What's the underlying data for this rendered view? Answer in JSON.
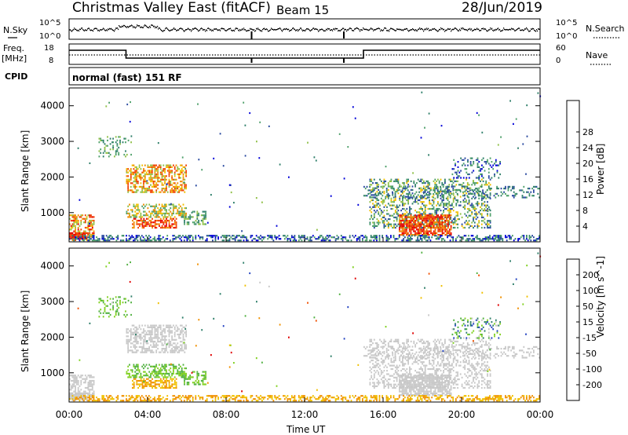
{
  "header": {
    "station": "Christmas Valley East (fitACF)",
    "beam": "Beam 15",
    "date": "28/Jun/2019"
  },
  "labels": {
    "nsky": "N.Sky",
    "nsearch": "N.Search",
    "freq_line1": "Freq.",
    "freq_line2": "[MHz]",
    "nave": "Nave",
    "cpid": "CPID",
    "cpid_value": "normal (fast) 151 RF",
    "noise_ticks": [
      "10^5",
      "10^0"
    ],
    "freq_ticks": [
      "18",
      "8"
    ],
    "nave_ticks": [
      "60",
      "0"
    ]
  },
  "chart_data": [
    {
      "type": "heatmap",
      "name": "power",
      "ylabel": "Slant Range [km]",
      "xlabel": "",
      "xlim": [
        0,
        24
      ],
      "ylim": [
        180,
        4500
      ],
      "yticks": [
        1000,
        2000,
        3000,
        4000
      ],
      "colorbar": {
        "label": "Power [dB]",
        "ticks": [
          "4",
          "8",
          "12",
          "16",
          "20",
          "24",
          "28"
        ],
        "colors": [
          "#0000d8",
          "#2a4aa0",
          "#2f7f6a",
          "#4ea06a",
          "#90c048",
          "#f0c000",
          "#f08c00",
          "#f04000",
          "#e80000"
        ]
      }
    },
    {
      "type": "heatmap",
      "name": "velocity",
      "ylabel": "Slant Range [km]",
      "xlabel": "Time UT",
      "xlim": [
        0,
        24
      ],
      "ylim": [
        180,
        4500
      ],
      "yticks": [
        1000,
        2000,
        3000,
        4000
      ],
      "xticks": [
        "00:00",
        "04:00",
        "08:00",
        "12:00",
        "16:00",
        "20:00",
        "00:00"
      ],
      "colorbar": {
        "label": "Velocity [m s^-1]",
        "ticks": [
          "200",
          "100",
          "50",
          "15",
          "-15",
          "-50",
          "-100",
          "-200"
        ],
        "colors": [
          "#2040c0",
          "#2f7f6a",
          "#50b040",
          "#80d020",
          "#c8c8c8",
          "#f0c000",
          "#f09000",
          "#f05000",
          "#e00000"
        ]
      }
    }
  ]
}
